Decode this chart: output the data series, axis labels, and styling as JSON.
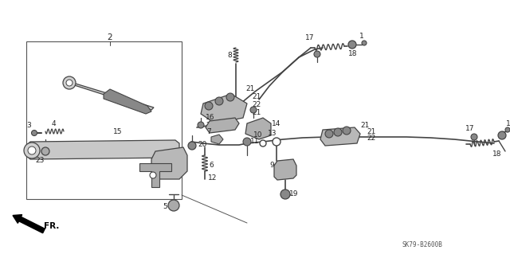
{
  "fig_width": 6.4,
  "fig_height": 3.19,
  "dpi": 100,
  "bg_color": "#ffffff",
  "lc": "#444444",
  "tc": "#222222",
  "title_text": "SK79-B2600B"
}
